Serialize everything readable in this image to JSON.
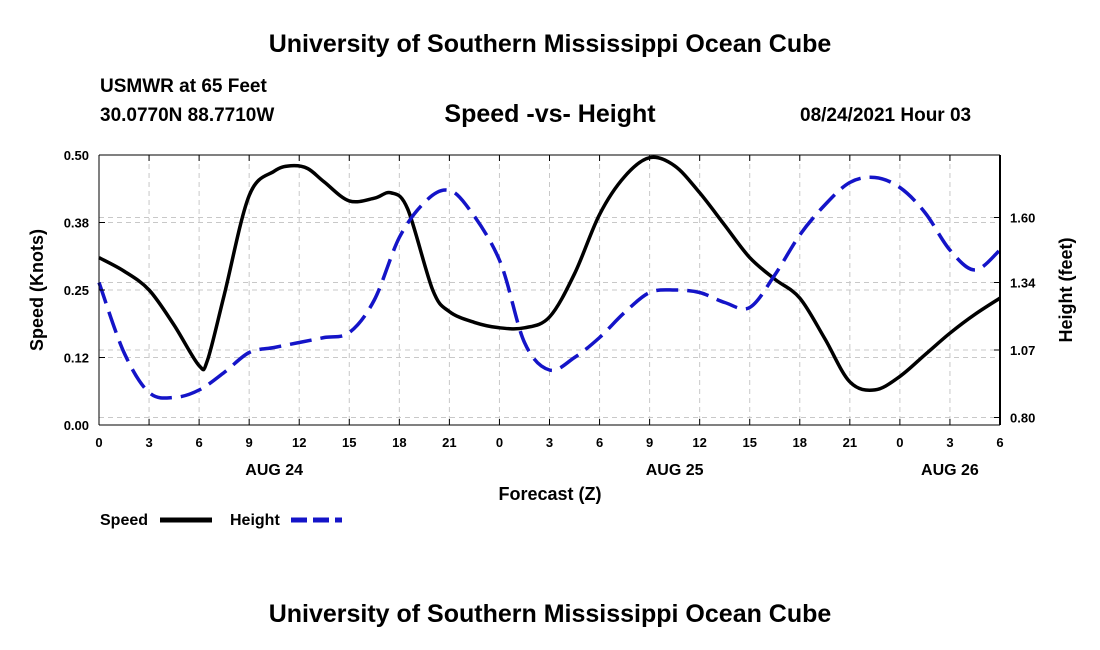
{
  "header": {
    "title": "University of Southern Mississippi Ocean Cube",
    "station": "USMWR at 65 Feet",
    "coords": "30.0770N  88.7710W",
    "chart_title": "Speed -vs- Height",
    "date": "08/24/2021 Hour 03"
  },
  "footer": {
    "title": "University of Southern Mississippi Ocean Cube"
  },
  "colors": {
    "speed": "#000000",
    "height": "#1414c8",
    "grid": "#c8c8c8"
  },
  "chart_data": {
    "type": "line",
    "title": "Speed -vs- Height",
    "xlabel": "Forecast (Z)",
    "ylabel": "Speed (Knots)",
    "y2label": "Height (feet)",
    "xlim": [
      0,
      54
    ],
    "ylim": [
      0,
      0.5
    ],
    "y2lim": [
      0.77,
      1.85
    ],
    "xtick_values": [
      0,
      3,
      6,
      9,
      12,
      15,
      18,
      21,
      24,
      27,
      30,
      33,
      36,
      39,
      42,
      45,
      48,
      51,
      54
    ],
    "xtick_labels": [
      "0",
      "3",
      "6",
      "9",
      "12",
      "15",
      "18",
      "21",
      "0",
      "3",
      "6",
      "9",
      "12",
      "15",
      "18",
      "21",
      "0",
      "3",
      "6"
    ],
    "day_labels": [
      {
        "x": 10.5,
        "label": "AUG 24"
      },
      {
        "x": 34.5,
        "label": "AUG 25"
      },
      {
        "x": 51.0,
        "label": "AUG 26"
      }
    ],
    "ytick_values": [
      0,
      0.125,
      0.25,
      0.375,
      0.5
    ],
    "ytick_labels": [
      "0.00",
      "0.12",
      "0.25",
      "0.38",
      "0.50"
    ],
    "y2tick_values": [
      0.8,
      1.07,
      1.34,
      1.6
    ],
    "y2tick_labels": [
      "0.80",
      "1.07",
      "1.34",
      "1.60"
    ],
    "grid": true,
    "legend": {
      "position": "bottom-left",
      "items": [
        {
          "label": "Speed",
          "series": "Speed"
        },
        {
          "label": "Height",
          "series": "Height"
        }
      ]
    },
    "series": [
      {
        "name": "Speed",
        "axis": "left",
        "style": "solid",
        "x": [
          0,
          1.5,
          3,
          4.5,
          6,
          6.5,
          7.5,
          9,
          10.5,
          11.5,
          12.5,
          13.5,
          15,
          16.5,
          17.5,
          18.5,
          20,
          21,
          22.5,
          24,
          25.5,
          27,
          28.5,
          30,
          31.5,
          33,
          34.5,
          36,
          37.5,
          39,
          40.5,
          42,
          43.5,
          45,
          46.5,
          48,
          49.5,
          51,
          52.5,
          54
        ],
        "y": [
          0.31,
          0.285,
          0.25,
          0.185,
          0.11,
          0.12,
          0.24,
          0.425,
          0.47,
          0.48,
          0.475,
          0.45,
          0.415,
          0.42,
          0.43,
          0.4,
          0.25,
          0.21,
          0.19,
          0.18,
          0.18,
          0.2,
          0.28,
          0.39,
          0.46,
          0.495,
          0.48,
          0.43,
          0.37,
          0.31,
          0.27,
          0.235,
          0.16,
          0.08,
          0.065,
          0.09,
          0.13,
          0.17,
          0.205,
          0.235
        ]
      },
      {
        "name": "Height",
        "axis": "right",
        "style": "dashed",
        "x": [
          0,
          1.5,
          3,
          4.5,
          6,
          7.5,
          9,
          10.5,
          12,
          13.5,
          15,
          16.5,
          18,
          19.5,
          20.8,
          22,
          24,
          25.5,
          27,
          28.5,
          30,
          31.5,
          33,
          34.5,
          36,
          37.5,
          39,
          40.5,
          42,
          43.5,
          45,
          46.5,
          48,
          49.5,
          51,
          52.5,
          54
        ],
        "y": [
          1.34,
          1.06,
          0.9,
          0.88,
          0.91,
          0.98,
          1.06,
          1.08,
          1.1,
          1.12,
          1.14,
          1.27,
          1.52,
          1.66,
          1.71,
          1.65,
          1.43,
          1.1,
          0.99,
          1.04,
          1.12,
          1.22,
          1.3,
          1.31,
          1.3,
          1.26,
          1.24,
          1.37,
          1.53,
          1.65,
          1.74,
          1.76,
          1.72,
          1.62,
          1.47,
          1.39,
          1.47
        ]
      }
    ]
  }
}
